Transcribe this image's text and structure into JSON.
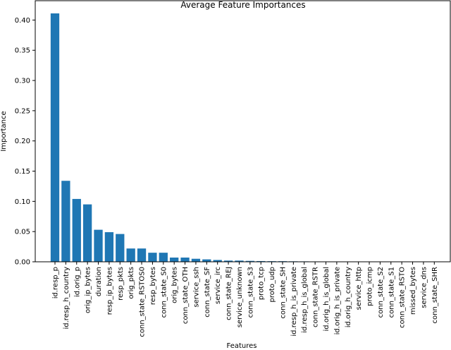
{
  "chart_data": {
    "type": "bar",
    "title": "Average Feature Importances",
    "xlabel": "Features",
    "ylabel": "Importance",
    "ylim": [
      0,
      0.432
    ],
    "yticks": [
      "0.00",
      "0.05",
      "0.10",
      "0.15",
      "0.20",
      "0.25",
      "0.30",
      "0.35",
      "0.40"
    ],
    "grid": false,
    "bar_color": "#1f77b4",
    "categories": [
      "id.resp_p",
      "id.resp_h_country",
      "id.orig_p",
      "orig_ip_bytes",
      "duration",
      "resp_ip_bytes",
      "resp_pkts",
      "orig_pkts",
      "conn_state_RSTOS0",
      "resp_bytes",
      "conn_state_S0",
      "orig_bytes",
      "conn_state_OTH",
      "service_ssh",
      "conn_state_SF",
      "service_irc",
      "conn_state_REJ",
      "service_unknown",
      "conn_state_S3",
      "proto_tcp",
      "proto_udp",
      "conn_state_SH",
      "id.resp_h_is_private",
      "id.resp_h_is_global",
      "conn_state_RSTR",
      "id.orig_h_is_global",
      "id.orig_h_is_private",
      "id.orig_h_country",
      "service_http",
      "proto_icmp",
      "conn_state_S2",
      "conn_state_S1",
      "conn_state_RSTO",
      "missed_bytes",
      "service_dns",
      "conn_state_SHR"
    ],
    "values": [
      0.411,
      0.134,
      0.104,
      0.095,
      0.053,
      0.049,
      0.046,
      0.022,
      0.022,
      0.015,
      0.015,
      0.007,
      0.007,
      0.005,
      0.004,
      0.003,
      0.002,
      0.002,
      0.0015,
      0.0012,
      0.001,
      0.001,
      0.0008,
      0.0007,
      0.0006,
      0.0003,
      0.0003,
      0.0002,
      0.0002,
      0.0001,
      0.0001,
      0.0001,
      5e-05,
      3e-05,
      2e-05,
      1e-05
    ]
  }
}
